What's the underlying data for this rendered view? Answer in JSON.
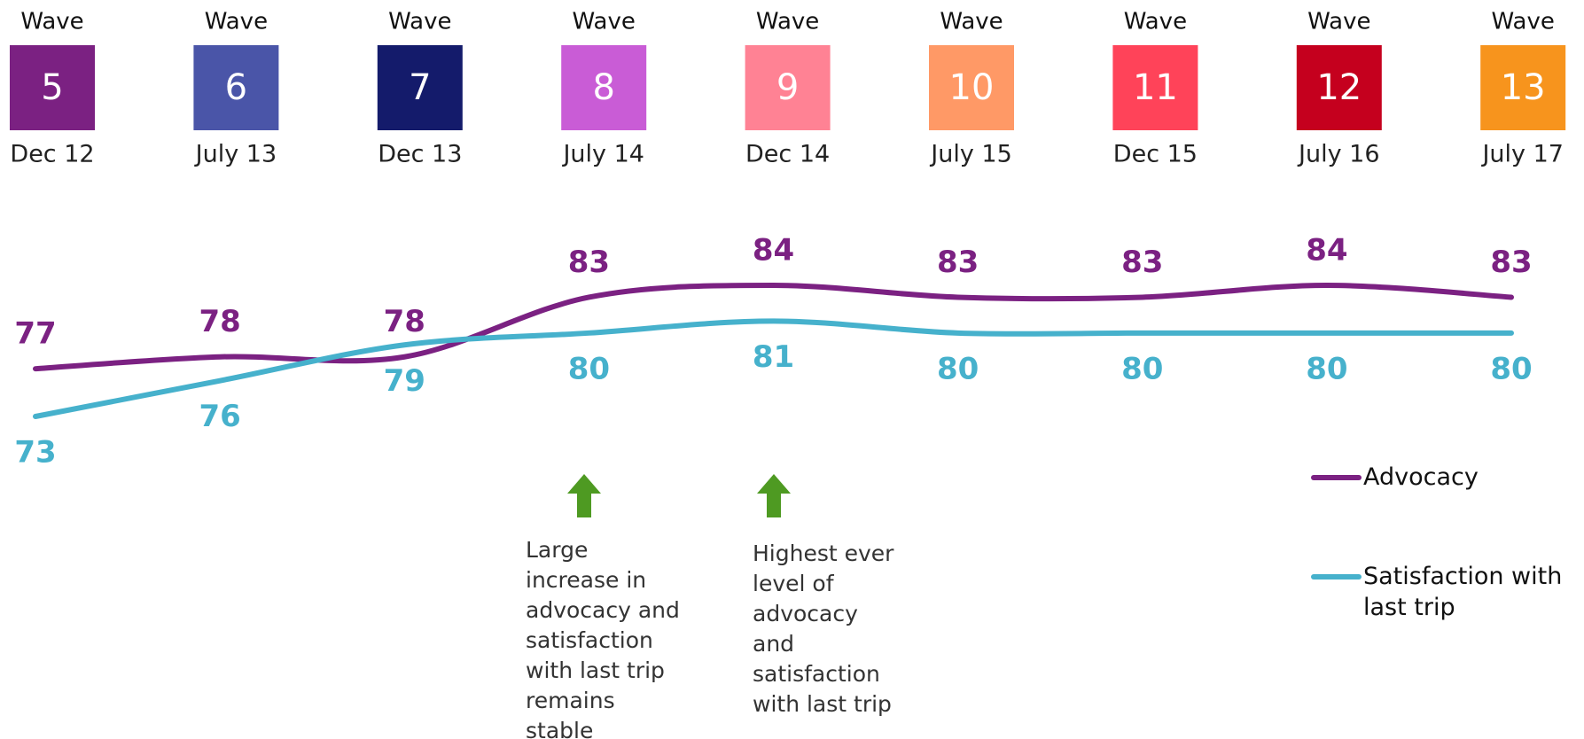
{
  "chart_data": {
    "type": "line",
    "wave_labels": [
      "Wave",
      "Wave",
      "Wave",
      "Wave",
      "Wave",
      "Wave",
      "Wave",
      "Wave",
      "Wave"
    ],
    "wave_numbers": [
      5,
      6,
      7,
      8,
      9,
      10,
      11,
      12,
      13
    ],
    "wave_colors": [
      "#7b2182",
      "#4a55a8",
      "#141b6b",
      "#c95cd6",
      "#ff8294",
      "#ff9966",
      "#ff4359",
      "#c5001e",
      "#f7941d"
    ],
    "categories": [
      "Dec 12",
      "July 13",
      "Dec 13",
      "July 14",
      "Dec 14",
      "July 15",
      "Dec 15",
      "July 16",
      "July 17"
    ],
    "series": [
      {
        "name": "Advocacy",
        "color": "#7b2182",
        "values": [
          77,
          78,
          78,
          83,
          84,
          83,
          83,
          84,
          83
        ]
      },
      {
        "name": "Satisfaction with last trip",
        "color": "#46b1cc",
        "values": [
          73,
          76,
          79,
          80,
          81,
          80,
          80,
          80,
          80
        ]
      }
    ],
    "annotations": [
      {
        "color": "#4e9a22",
        "lines": [
          "Large",
          "increase in",
          "advocacy and",
          "satisfaction",
          "with last trip",
          "remains",
          "stable"
        ]
      },
      {
        "color": "#4e9a22",
        "lines": [
          "Highest ever",
          "level of",
          "advocacy",
          "and",
          "satisfaction",
          "with last trip"
        ]
      }
    ]
  }
}
